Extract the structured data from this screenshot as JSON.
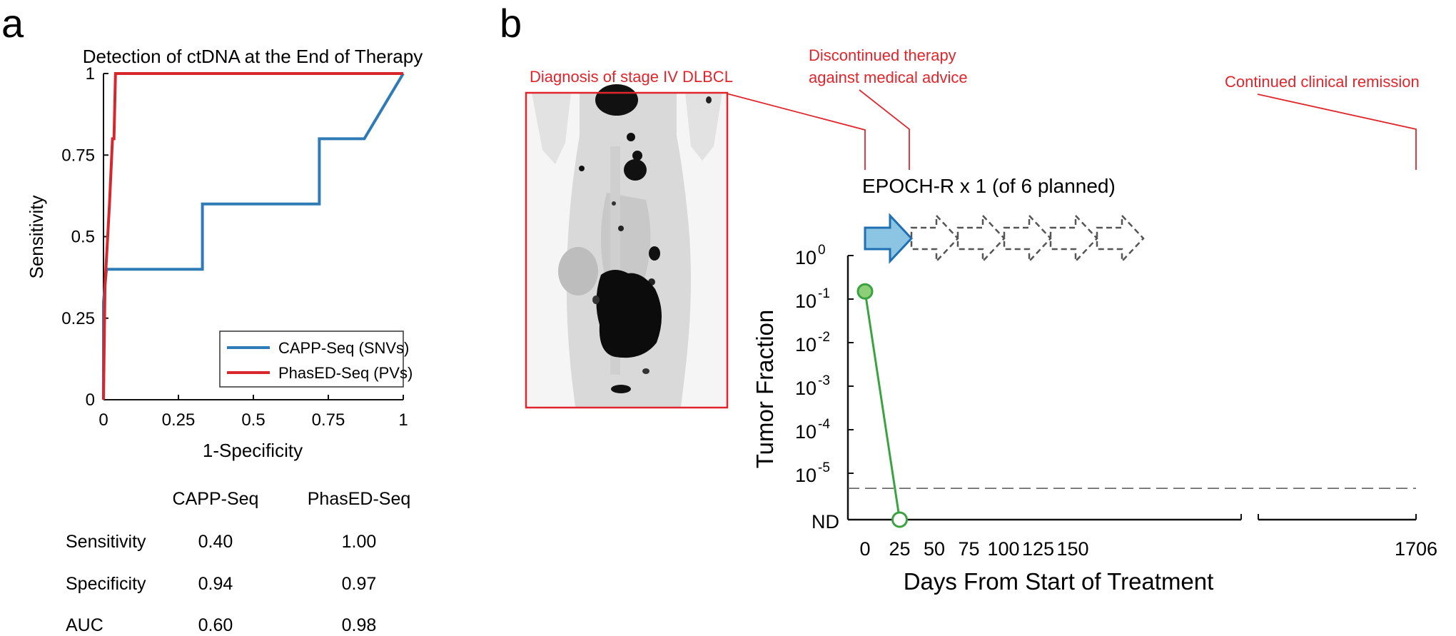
{
  "panel_a": {
    "letter": "a",
    "chart_data": {
      "type": "line",
      "title": "Detection of ctDNA at the End of Therapy",
      "xlabel": "1-Specificity",
      "ylabel": "Sensitivity",
      "xlim": [
        0,
        1
      ],
      "ylim": [
        0,
        1
      ],
      "xticks": [
        "0",
        "0.25",
        "0.5",
        "0.75",
        "1"
      ],
      "yticks": [
        "0",
        "0.25",
        "0.5",
        "0.75",
        "1"
      ],
      "grid": false,
      "legend_position": "bottom-right",
      "series": [
        {
          "name": "CAPP-Seq (SNVs)",
          "color": "#2f7bb6",
          "points": [
            [
              0,
              0
            ],
            [
              0,
              0.3
            ],
            [
              0.01,
              0.4
            ],
            [
              0.33,
              0.4
            ],
            [
              0.33,
              0.6
            ],
            [
              0.72,
              0.6
            ],
            [
              0.72,
              0.8
            ],
            [
              0.87,
              0.8
            ],
            [
              1,
              1
            ]
          ]
        },
        {
          "name": "PhasED-Seq (PVs)",
          "color": "#d7262c",
          "points": [
            [
              0,
              0
            ],
            [
              0.005,
              0.35
            ],
            [
              0.02,
              0.6
            ],
            [
              0.03,
              0.8
            ],
            [
              0.035,
              0.8
            ],
            [
              0.04,
              1
            ],
            [
              1,
              1
            ]
          ]
        }
      ]
    },
    "table": {
      "columns": [
        "CAPP-Seq",
        "PhasED-Seq"
      ],
      "rows": [
        {
          "label": "Sensitivity",
          "values": [
            "0.40",
            "1.00"
          ]
        },
        {
          "label": "Specificity",
          "values": [
            "0.94",
            "0.97"
          ]
        },
        {
          "label": "AUC",
          "values": [
            "0.60",
            "0.98"
          ]
        }
      ]
    }
  },
  "panel_b": {
    "letter": "b",
    "annotations": {
      "diagnosis": "Diagnosis of stage IV DLBCL",
      "discontinued_line1": "Discontinued therapy",
      "discontinued_line2": "against medical advice",
      "remission": "Continued clinical remission"
    },
    "regimen_label": "EPOCH-R x 1 (of 6 planned)",
    "cycles": {
      "given": 1,
      "planned": 6
    },
    "accent_color": "#e0262c",
    "chart_data": {
      "type": "line",
      "xlabel": "Days From Start of Treatment",
      "ylabel": "Tumor Fraction",
      "y_scale": "log",
      "yticks": [
        {
          "base": "10",
          "exp": "0",
          "value": 1
        },
        {
          "base": "10",
          "exp": "-1",
          "value": 0.1
        },
        {
          "base": "10",
          "exp": "-2",
          "value": 0.01
        },
        {
          "base": "10",
          "exp": "-3",
          "value": 0.001
        },
        {
          "base": "10",
          "exp": "-4",
          "value": 0.0001
        },
        {
          "base": "10",
          "exp": "-5",
          "value": 1e-05
        },
        {
          "label": "ND",
          "value": null
        }
      ],
      "xticks": [
        0,
        25,
        50,
        75,
        100,
        125,
        150,
        1706
      ],
      "x_axis_break": "between 150 and 1706",
      "detection_limit": 4.5e-06,
      "series": [
        {
          "color": "#3aa340",
          "points": [
            {
              "day": 0,
              "value": 0.15,
              "detected": true
            },
            {
              "day": 25,
              "value": "ND",
              "detected": false
            }
          ]
        }
      ]
    }
  }
}
